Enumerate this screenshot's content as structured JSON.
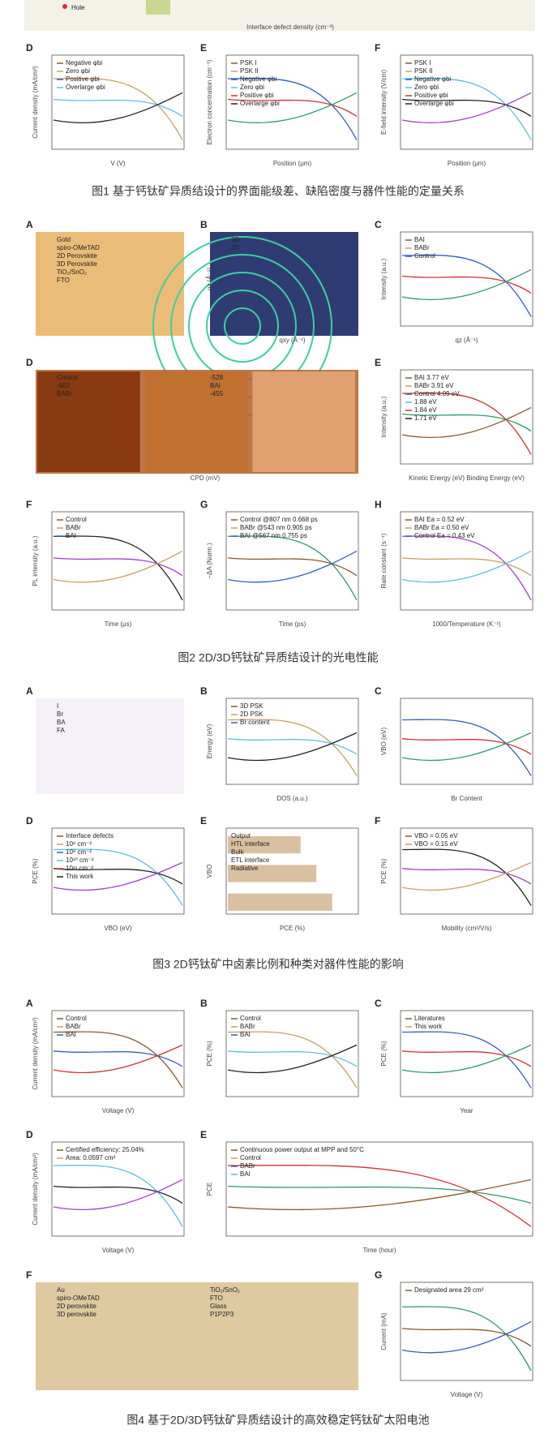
{
  "figures": [
    {
      "panels": [
        {
          "labels": [
            "Hole"
          ],
          "xlabel": "Interface defect density (cm⁻³)"
        },
        {
          "letter": "D",
          "labels": [
            "Negative φbi",
            "Zero φbi",
            "Positive φbi",
            "Overlarge φbi"
          ],
          "xlabel": "V (V)",
          "ylabel": "Current density (mA/cm²)"
        },
        {
          "letter": "E",
          "labels": [
            "PSK I",
            "PSK II",
            "Negative φbi",
            "Zero φbi",
            "Positive φbi",
            "Overlarge φbi"
          ],
          "xlabel": "Position (μm)",
          "ylabel": "Electron concentration (cm⁻³)"
        },
        {
          "letter": "F",
          "labels": [
            "PSK I",
            "PSK II",
            "Negative φbi",
            "Zero φbi",
            "Positive φbi",
            "Overlarge φbi"
          ],
          "xlabel": "Position (μm)",
          "ylabel": "E-field intensity (V/cm)"
        }
      ],
      "caption": "图1 基于钙钛矿异质结设计的界面能级差、缺陷密度与器件性能的定量关系"
    },
    {
      "panels": [
        {
          "letter": "A",
          "labels": [
            "Gold",
            "spiro-OMeTAD",
            "2D Perovskite",
            "3D Perovskite",
            "TiO₂/SnO₂",
            "FTO"
          ]
        },
        {
          "letter": "B",
          "labels": [
            "3D",
            "2D"
          ],
          "xlabel": "qxy (Å⁻¹)",
          "ylabel": "qz (Å⁻¹)"
        },
        {
          "letter": "C",
          "labels": [
            "BAI",
            "BABr",
            "Control"
          ],
          "xlabel": "qz (Å⁻¹)",
          "ylabel": "Intensity (a.u.)"
        },
        {
          "letter": "D",
          "labels": [
            "Control",
            "-602",
            "BABr",
            "-528",
            "BAI",
            "-455"
          ],
          "xlabel": "CPD (mV)"
        },
        {
          "letter": "E",
          "labels": [
            "BAI  3.77 eV",
            "BABr  3.91 eV",
            "Control  4.09 eV",
            "1.88 eV",
            "1.84 eV",
            "1.71 eV"
          ],
          "xlabel": "Kinetic Energy (eV)   Binding Energy (eV)",
          "ylabel": "Intensity (a.u.)"
        },
        {
          "letter": "F",
          "labels": [
            "Control",
            "BABr",
            "BAI"
          ],
          "xlabel": "Time (μs)",
          "ylabel": "PL intensity (a.u.)"
        },
        {
          "letter": "G",
          "labels": [
            "Control @807 nm  0.668 ps",
            "BABr @543 nm  0.905 ps",
            "BAI @567 nm  0.755 ps"
          ],
          "xlabel": "Time (ps)",
          "ylabel": "−ΔA (Norm.)"
        },
        {
          "letter": "H",
          "labels": [
            "BAI  Ea = 0.52 eV",
            "BABr  Ea = 0.50 eV",
            "Control  Ea = 0.43 eV"
          ],
          "xlabel": "1000/Temperature (K⁻¹)",
          "ylabel": "Rate constant (s⁻¹)"
        }
      ],
      "caption": "图2 2D/3D钙钛矿异质结设计的光电性能"
    },
    {
      "panels": [
        {
          "letter": "A",
          "labels": [
            "I",
            "Br",
            "BA",
            "FA"
          ]
        },
        {
          "letter": "B",
          "labels": [
            "3D PSK",
            "2D PSK",
            "Br content"
          ],
          "xlabel": "DOS (a.u.)",
          "ylabel": "Energy (eV)"
        },
        {
          "letter": "C",
          "xlabel": "Br Content",
          "ylabel": "VBO (eV)"
        },
        {
          "letter": "D",
          "labels": [
            "Interface defects",
            "10⁸ cm⁻²",
            "10⁹ cm⁻²",
            "10¹⁰ cm⁻²",
            "10¹¹ cm⁻²",
            "This work"
          ],
          "xlabel": "VBO (eV)",
          "ylabel": "PCE (%)"
        },
        {
          "letter": "E",
          "labels": [
            "Output",
            "HTL interface",
            "Bulk",
            "ETL interface",
            "Radiative"
          ],
          "xlabel": "PCE (%)",
          "ylabel": "VBO"
        },
        {
          "letter": "F",
          "labels": [
            "VBO = 0.05 eV",
            "VBO = 0.15 eV"
          ],
          "xlabel": "Mobility (cm²/V/s)",
          "ylabel": "PCE (%)"
        }
      ],
      "caption": "图3 2D钙钛矿中卤素比例和种类对器件性能的影响"
    },
    {
      "panels": [
        {
          "letter": "A",
          "labels": [
            "Control",
            "BABr",
            "BAI"
          ],
          "xlabel": "Voltage (V)",
          "ylabel": "Current density (mA/cm²)"
        },
        {
          "letter": "B",
          "labels": [
            "Control",
            "BABr",
            "BAI"
          ],
          "ylabel": "PCE (%)"
        },
        {
          "letter": "C",
          "labels": [
            "Literatures",
            "This work"
          ],
          "xlabel": "Year",
          "ylabel": "PCE (%)"
        },
        {
          "letter": "D",
          "labels": [
            "Certified efficiency: 25.04%",
            "Area: 0.0597 cm²"
          ],
          "xlabel": "Voltage (V)",
          "ylabel": "Current density (mA/cm²)"
        },
        {
          "letter": "E",
          "labels": [
            "Continuous power output at MPP and 50°C",
            "Control",
            "BABr",
            "BAI"
          ],
          "xlabel": "Time (hour)",
          "ylabel": "PCE"
        },
        {
          "letter": "F",
          "labels": [
            "Au",
            "spiro-OMeTAD",
            "2D perovskite",
            "3D perovskite",
            "TiO₂/SnO₂",
            "FTO",
            "Glass",
            "P1P2P3"
          ]
        },
        {
          "letter": "G",
          "labels": [
            "Designated area 29 cm²"
          ],
          "xlabel": "Voltage (V)",
          "ylabel": "Current (mA)"
        }
      ],
      "caption": "图4 基于2D/3D钙钛矿异质结设计的高效稳定钙钛矿太阳电池"
    }
  ]
}
